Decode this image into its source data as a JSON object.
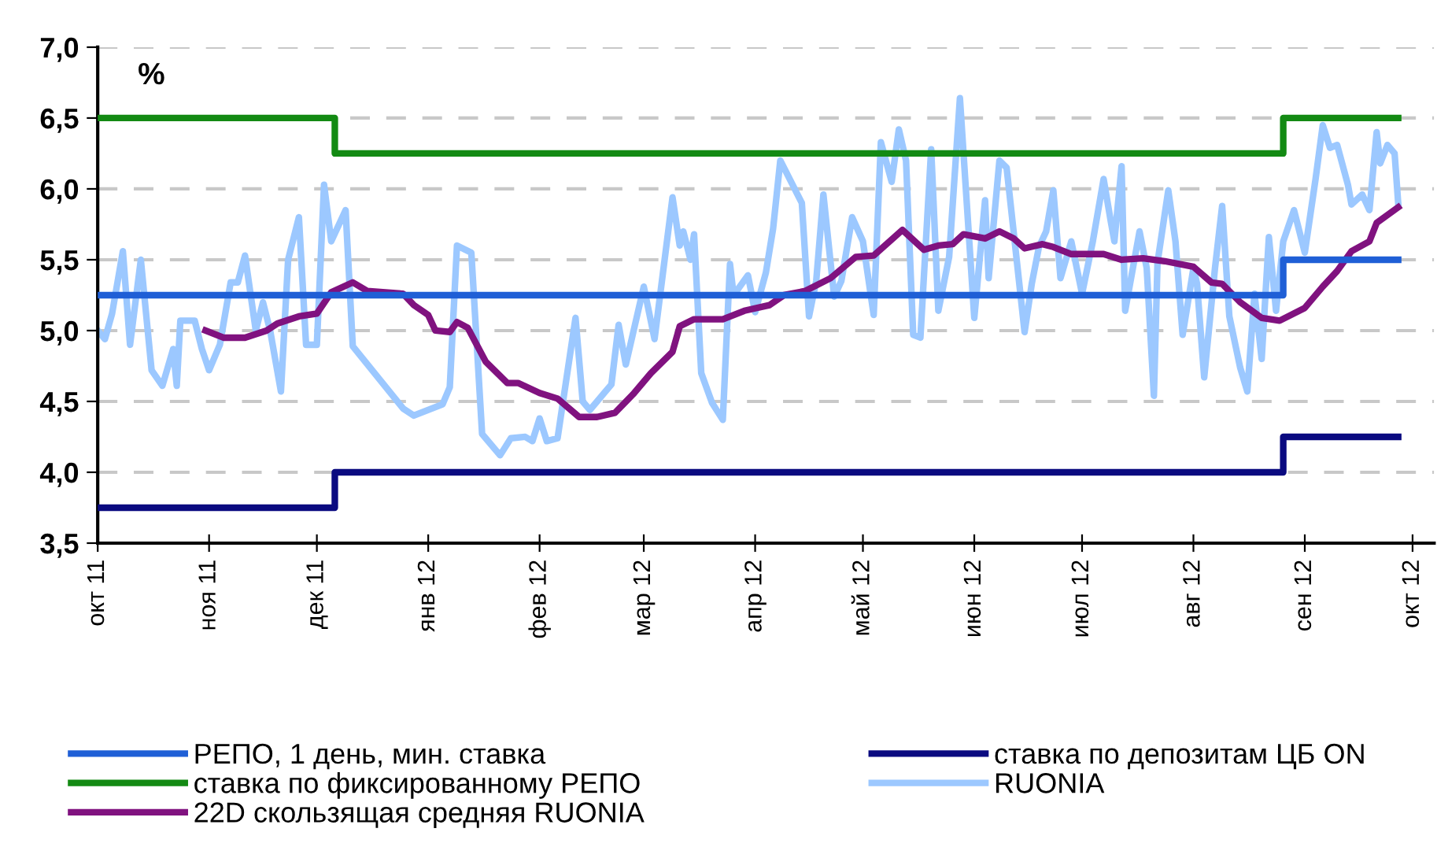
{
  "chart_data": {
    "type": "line",
    "annotations": [
      "%"
    ],
    "xlim": [
      "2011-10-01",
      "2012-10-07"
    ],
    "xticks": [
      {
        "value": "2011-10-01",
        "label": "окт 11"
      },
      {
        "value": "2011-11-01",
        "label": "ноя 11"
      },
      {
        "value": "2011-12-01",
        "label": "дек 11"
      },
      {
        "value": "2012-01-01",
        "label": "янв 12"
      },
      {
        "value": "2012-02-01",
        "label": "фев 12"
      },
      {
        "value": "2012-03-01",
        "label": "мар 12"
      },
      {
        "value": "2012-04-01",
        "label": "апр 12"
      },
      {
        "value": "2012-05-01",
        "label": "май 12"
      },
      {
        "value": "2012-06-01",
        "label": "июн 12"
      },
      {
        "value": "2012-07-01",
        "label": "июл 12"
      },
      {
        "value": "2012-08-01",
        "label": "авг 12"
      },
      {
        "value": "2012-09-01",
        "label": "сен 12"
      },
      {
        "value": "2012-10-01",
        "label": "окт 12"
      }
    ],
    "ylim": [
      3.5,
      7.0
    ],
    "yticks": [
      {
        "value": 3.5,
        "label": "3,5"
      },
      {
        "value": 4.0,
        "label": "4,0"
      },
      {
        "value": 4.5,
        "label": "4,5"
      },
      {
        "value": 5.0,
        "label": "5,0"
      },
      {
        "value": 5.5,
        "label": "5,5"
      },
      {
        "value": 6.0,
        "label": "6,0"
      },
      {
        "value": 6.5,
        "label": "6,5"
      },
      {
        "value": 7.0,
        "label": "7,0"
      }
    ],
    "grid": "y",
    "legend": "bottom",
    "marker": "none",
    "line_style": "solid",
    "series": [
      {
        "name": "РЕПО, 1 день, мин. ставка",
        "type": "step",
        "color": "#1f5fd6",
        "x": [
          "2011-10-01",
          "2012-08-26",
          "2012-09-27"
        ],
        "values": [
          5.25,
          5.5,
          5.5
        ]
      },
      {
        "name": "ставка по фиксированному РЕПО",
        "type": "step",
        "color": "#138a13",
        "x": [
          "2011-10-01",
          "2011-12-06",
          "2012-08-26",
          "2012-09-27"
        ],
        "values": [
          6.5,
          6.25,
          6.5,
          6.5
        ]
      },
      {
        "name": "22D скользящая средняя RUONIA",
        "color": "#80127f",
        "x": [
          "2011-10-31",
          "2011-11-05",
          "2011-11-11",
          "2011-11-17",
          "2011-11-20",
          "2011-11-26",
          "2011-12-01",
          "2011-12-05",
          "2011-12-11",
          "2011-12-15",
          "2011-12-25",
          "2011-12-28",
          "2012-01-01",
          "2012-01-03",
          "2012-01-07",
          "2012-01-09",
          "2012-01-12",
          "2012-01-17",
          "2012-01-23",
          "2012-01-26",
          "2012-02-01",
          "2012-02-06",
          "2012-02-12",
          "2012-02-17",
          "2012-02-22",
          "2012-02-27",
          "2012-03-03",
          "2012-03-09",
          "2012-03-11",
          "2012-03-15",
          "2012-03-23",
          "2012-03-29",
          "2012-04-05",
          "2012-04-09",
          "2012-04-15",
          "2012-04-22",
          "2012-04-29",
          "2012-05-04",
          "2012-05-12",
          "2012-05-18",
          "2012-05-22",
          "2012-05-26",
          "2012-05-29",
          "2012-06-04",
          "2012-06-08",
          "2012-06-12",
          "2012-06-15",
          "2012-06-20",
          "2012-06-23",
          "2012-06-28",
          "2012-07-07",
          "2012-07-12",
          "2012-07-18",
          "2012-07-24",
          "2012-08-01",
          "2012-08-06",
          "2012-08-09",
          "2012-08-14",
          "2012-08-20",
          "2012-08-25",
          "2012-09-01",
          "2012-09-06",
          "2012-09-10",
          "2012-09-14",
          "2012-09-19",
          "2012-09-21",
          "2012-09-27"
        ],
        "values": [
          5.0,
          4.95,
          4.95,
          5.0,
          5.05,
          5.1,
          5.12,
          5.27,
          5.34,
          5.28,
          5.26,
          5.18,
          5.11,
          5.0,
          4.99,
          5.06,
          5.02,
          4.78,
          4.63,
          4.63,
          4.56,
          4.52,
          4.39,
          4.39,
          4.42,
          4.55,
          4.7,
          4.85,
          5.03,
          5.08,
          5.08,
          5.14,
          5.18,
          5.25,
          5.28,
          5.37,
          5.52,
          5.53,
          5.71,
          5.57,
          5.6,
          5.61,
          5.68,
          5.65,
          5.7,
          5.65,
          5.58,
          5.61,
          5.59,
          5.54,
          5.54,
          5.5,
          5.51,
          5.49,
          5.45,
          5.34,
          5.33,
          5.2,
          5.09,
          5.07,
          5.16,
          5.31,
          5.42,
          5.56,
          5.63,
          5.76,
          5.87
        ]
      },
      {
        "name": "ставка по депозитам ЦБ ON",
        "type": "step",
        "color": "#0a0a80",
        "x": [
          "2011-10-01",
          "2011-12-06",
          "2012-08-26",
          "2012-09-27"
        ],
        "values": [
          3.75,
          4.0,
          4.25,
          4.25
        ]
      },
      {
        "name": "RUONIA",
        "color": "#9cc8ff",
        "x": [
          "2011-10-01",
          "2011-10-03",
          "2011-10-05",
          "2011-10-08",
          "2011-10-10",
          "2011-10-13",
          "2011-10-16",
          "2011-10-19",
          "2011-10-22",
          "2011-10-23",
          "2011-10-24",
          "2011-10-28",
          "2011-10-30",
          "2011-11-01",
          "2011-11-04",
          "2011-11-07",
          "2011-11-09",
          "2011-11-11",
          "2011-11-14",
          "2011-11-16",
          "2011-11-18",
          "2011-11-21",
          "2011-11-23",
          "2011-11-26",
          "2011-11-28",
          "2011-12-01",
          "2011-12-03",
          "2011-12-05",
          "2011-12-09",
          "2011-12-11",
          "2011-12-25",
          "2011-12-28",
          "2012-01-05",
          "2012-01-07",
          "2012-01-09",
          "2012-01-13",
          "2012-01-16",
          "2012-01-17",
          "2012-01-21",
          "2012-01-24",
          "2012-01-28",
          "2012-01-30",
          "2012-02-01",
          "2012-02-03",
          "2012-02-06",
          "2012-02-11",
          "2012-02-13",
          "2012-02-15",
          "2012-02-21",
          "2012-02-23",
          "2012-02-25",
          "2012-03-01",
          "2012-03-04",
          "2012-03-09",
          "2012-03-11",
          "2012-03-12",
          "2012-03-14",
          "2012-03-15",
          "2012-03-17",
          "2012-03-20",
          "2012-03-23",
          "2012-03-25",
          "2012-03-26",
          "2012-03-30",
          "2012-04-01",
          "2012-04-04",
          "2012-04-06",
          "2012-04-08",
          "2012-04-11",
          "2012-04-14",
          "2012-04-16",
          "2012-04-18",
          "2012-04-20",
          "2012-04-23",
          "2012-04-25",
          "2012-04-28",
          "2012-05-01",
          "2012-05-04",
          "2012-05-06",
          "2012-05-09",
          "2012-05-11",
          "2012-05-13",
          "2012-05-15",
          "2012-05-17",
          "2012-05-20",
          "2012-05-22",
          "2012-05-25",
          "2012-05-28",
          "2012-06-01",
          "2012-06-04",
          "2012-06-05",
          "2012-06-08",
          "2012-06-10",
          "2012-06-15",
          "2012-06-17",
          "2012-06-19",
          "2012-06-21",
          "2012-06-23",
          "2012-06-25",
          "2012-06-28",
          "2012-07-01",
          "2012-07-04",
          "2012-07-07",
          "2012-07-09",
          "2012-07-10",
          "2012-07-12",
          "2012-07-13",
          "2012-07-17",
          "2012-07-19",
          "2012-07-21",
          "2012-07-22",
          "2012-07-25",
          "2012-07-27",
          "2012-07-29",
          "2012-08-01",
          "2012-08-02",
          "2012-08-04",
          "2012-08-07",
          "2012-08-09",
          "2012-08-11",
          "2012-08-14",
          "2012-08-16",
          "2012-08-18",
          "2012-08-20",
          "2012-08-22",
          "2012-08-24",
          "2012-08-26",
          "2012-08-29",
          "2012-09-01",
          "2012-09-04",
          "2012-09-06",
          "2012-09-08",
          "2012-09-10",
          "2012-09-13",
          "2012-09-14",
          "2012-09-17",
          "2012-09-19",
          "2012-09-21",
          "2012-09-22",
          "2012-09-24",
          "2012-09-26",
          "2012-09-27"
        ],
        "values": [
          5.0,
          4.94,
          5.12,
          5.56,
          4.9,
          5.5,
          4.72,
          4.61,
          4.87,
          4.61,
          5.07,
          5.07,
          4.87,
          4.72,
          4.9,
          5.34,
          5.34,
          5.53,
          5.0,
          5.2,
          5.0,
          4.57,
          5.5,
          5.8,
          4.9,
          4.9,
          6.03,
          5.63,
          5.85,
          4.89,
          4.45,
          4.4,
          4.48,
          4.6,
          5.6,
          5.55,
          4.27,
          4.24,
          4.12,
          4.24,
          4.25,
          4.22,
          4.38,
          4.22,
          4.24,
          5.09,
          4.5,
          4.44,
          4.62,
          5.04,
          4.76,
          5.31,
          4.94,
          5.94,
          5.6,
          5.7,
          5.5,
          5.68,
          4.7,
          4.49,
          4.37,
          5.47,
          5.25,
          5.39,
          5.13,
          5.41,
          5.72,
          6.2,
          6.05,
          5.9,
          5.1,
          5.35,
          5.96,
          5.24,
          5.35,
          5.8,
          5.63,
          5.11,
          6.33,
          6.05,
          6.42,
          6.2,
          4.97,
          4.95,
          6.28,
          5.14,
          5.52,
          6.64,
          5.09,
          5.92,
          5.37,
          6.2,
          6.15,
          4.99,
          5.33,
          5.59,
          5.7,
          5.99,
          5.37,
          5.63,
          5.26,
          5.63,
          6.07,
          5.77,
          5.63,
          6.16,
          5.14,
          5.7,
          5.44,
          4.54,
          5.48,
          5.99,
          5.63,
          4.97,
          5.44,
          5.33,
          4.67,
          5.44,
          5.88,
          5.1,
          4.74,
          4.57,
          5.26,
          4.8,
          5.66,
          5.14,
          5.63,
          5.85,
          5.55,
          6.07,
          6.45,
          6.29,
          6.31,
          6.03,
          5.89,
          5.96,
          5.85,
          6.4,
          6.18,
          6.31,
          6.25,
          5.9
        ]
      }
    ]
  }
}
